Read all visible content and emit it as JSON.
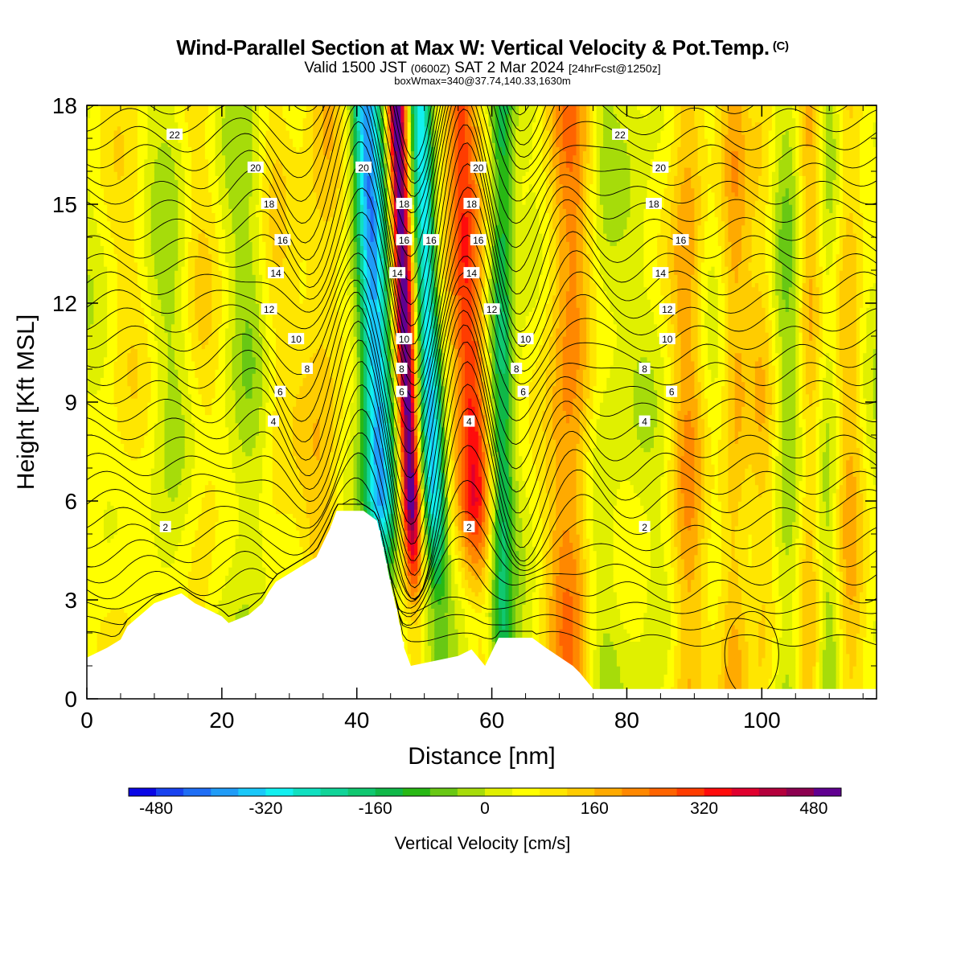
{
  "header": {
    "title": "Wind-Parallel Section at Max W: Vertical Velocity & Pot.Temp.",
    "copyright": "(C)",
    "valid_main": "Valid 1500 JST",
    "valid_utc": "(0600Z)",
    "valid_date": "SAT 2 Mar 2024",
    "forecast": "[24hrFcst@1250z]",
    "box_info": "boxWmax=340@37.74,140.33,1630m"
  },
  "chart_data": {
    "type": "heatmap",
    "xlabel": "Distance [nm]",
    "ylabel": "Height [Kft MSL]",
    "xlim": [
      0,
      117
    ],
    "ylim": [
      0,
      18
    ],
    "xticks": [
      0,
      20,
      40,
      60,
      80,
      100
    ],
    "yticks": [
      0,
      3,
      6,
      9,
      12,
      15,
      18
    ],
    "colorbar": {
      "label": "Vertical Velocity [cm/s]",
      "min": -520,
      "max": 520,
      "step": 40,
      "tick_values": [
        -480,
        -320,
        -160,
        0,
        160,
        320,
        480
      ],
      "tick_labels": [
        "-480",
        "-320",
        "-160",
        "0",
        "160",
        "320",
        "480"
      ],
      "colors": [
        "#0a06e6",
        "#1842f0",
        "#1f6ef5",
        "#209cf7",
        "#1ac8f9",
        "#12f0f0",
        "#10e0c0",
        "#10d498",
        "#10c870",
        "#10b848",
        "#28b814",
        "#68c814",
        "#a6dc0a",
        "#e0f000",
        "#ffff00",
        "#ffe600",
        "#ffcc00",
        "#ffaa00",
        "#ff8800",
        "#ff6400",
        "#ff3c00",
        "#ff0c0c",
        "#e0002e",
        "#b4003c",
        "#8c0050",
        "#600090"
      ]
    },
    "contour_labels": {
      "description": "Potential temperature contour labels",
      "values": [
        "2",
        "4",
        "6",
        "8",
        "10",
        "12",
        "14",
        "16",
        "18",
        "20",
        "22"
      ]
    },
    "terrain_kft": [
      [
        0,
        1.25
      ],
      [
        3,
        1.55
      ],
      [
        5,
        1.8
      ],
      [
        6,
        2.2
      ],
      [
        8,
        2.55
      ],
      [
        10,
        2.9
      ],
      [
        14,
        3.2
      ],
      [
        16,
        2.9
      ],
      [
        20,
        2.5
      ],
      [
        21,
        2.3
      ],
      [
        24,
        2.55
      ],
      [
        26,
        2.9
      ],
      [
        27,
        3.25
      ],
      [
        28,
        3.55
      ],
      [
        34,
        4.3
      ],
      [
        36,
        5.15
      ],
      [
        37,
        5.7
      ],
      [
        41,
        5.7
      ],
      [
        43,
        5.4
      ],
      [
        44,
        4.5
      ],
      [
        45,
        3.5
      ],
      [
        46,
        2.6
      ],
      [
        47,
        1.55
      ],
      [
        48,
        1.0
      ],
      [
        55,
        1.3
      ],
      [
        57,
        1.5
      ],
      [
        59,
        1.0
      ],
      [
        61,
        1.85
      ],
      [
        66,
        1.85
      ],
      [
        68,
        1.55
      ],
      [
        72,
        1.0
      ],
      [
        73,
        0.8
      ],
      [
        75,
        0.3
      ],
      [
        117,
        0.3
      ]
    ],
    "velocity_bands": [
      {
        "x": 43.0,
        "w": 2.2,
        "v": -420
      },
      {
        "x": 47.5,
        "w": 1.4,
        "v": 520
      },
      {
        "x": 51.0,
        "w": 1.6,
        "v": -350
      },
      {
        "x": 57.0,
        "w": 2.6,
        "v": 300
      },
      {
        "x": 61.5,
        "w": 1.7,
        "v": -190
      },
      {
        "x": 71.5,
        "w": 3.5,
        "v": 190
      },
      {
        "x": 76.0,
        "w": 2.4,
        "v": -40
      },
      {
        "x": 89.0,
        "w": 2.6,
        "v": 150
      },
      {
        "x": 96.0,
        "w": 2.2,
        "v": 130
      },
      {
        "x": 100.0,
        "w": 2.0,
        "v": 90
      },
      {
        "x": 104.0,
        "w": 2.0,
        "v": -60
      },
      {
        "x": 107.0,
        "w": 1.8,
        "v": 120
      },
      {
        "x": 110.0,
        "w": 1.6,
        "v": -50
      },
      {
        "x": 113.0,
        "w": 2.2,
        "v": 120
      },
      {
        "x": 35.0,
        "w": 3.5,
        "v": 110
      },
      {
        "x": 28.0,
        "w": 3.0,
        "v": 70
      },
      {
        "x": 24.0,
        "w": 3.0,
        "v": -50
      },
      {
        "x": 17.0,
        "w": 3.0,
        "v": 70
      },
      {
        "x": 12.0,
        "w": 3.0,
        "v": -40
      },
      {
        "x": 6.0,
        "w": 4.0,
        "v": 60
      }
    ]
  }
}
